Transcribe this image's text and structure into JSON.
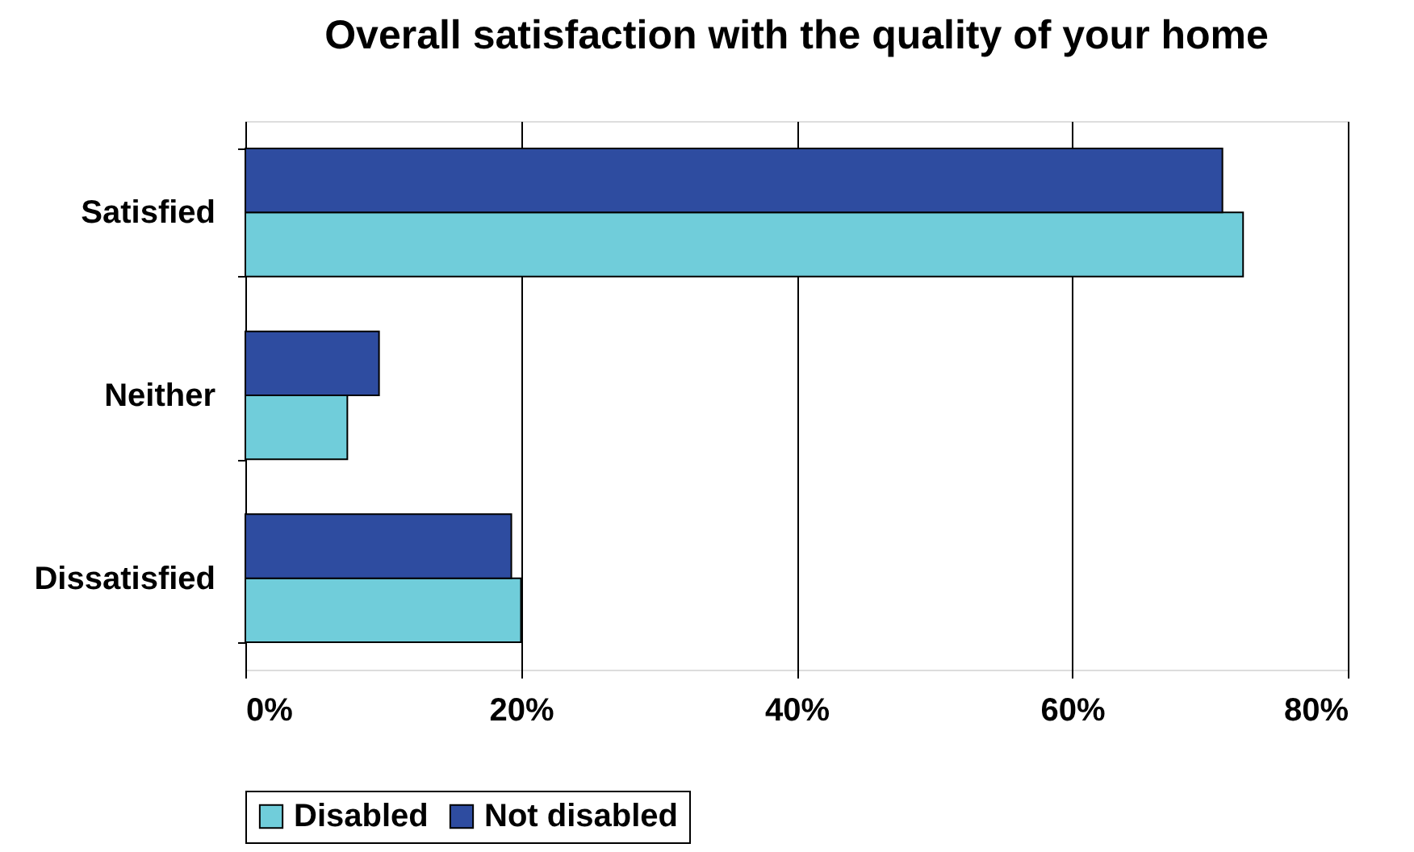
{
  "chart_data": {
    "type": "bar",
    "orientation": "horizontal",
    "title": "Overall satisfaction with the quality of your home",
    "categories": [
      "Satisfied",
      "Neither",
      "Dissatisfied"
    ],
    "series": [
      {
        "name": "Disabled",
        "color": "#70cdda",
        "values": [
          72.4,
          7.4,
          20.0
        ]
      },
      {
        "name": "Not disabled",
        "color": "#2e4ca0",
        "values": [
          70.9,
          9.7,
          19.3
        ]
      }
    ],
    "xlim": [
      0,
      80
    ],
    "xticks": [
      {
        "value": 0,
        "label": "0%"
      },
      {
        "value": 20,
        "label": "20%"
      },
      {
        "value": 40,
        "label": "40%"
      },
      {
        "value": 60,
        "label": "60%"
      },
      {
        "value": 80,
        "label": "80%"
      }
    ],
    "grid": "x",
    "legend": "bottom"
  }
}
